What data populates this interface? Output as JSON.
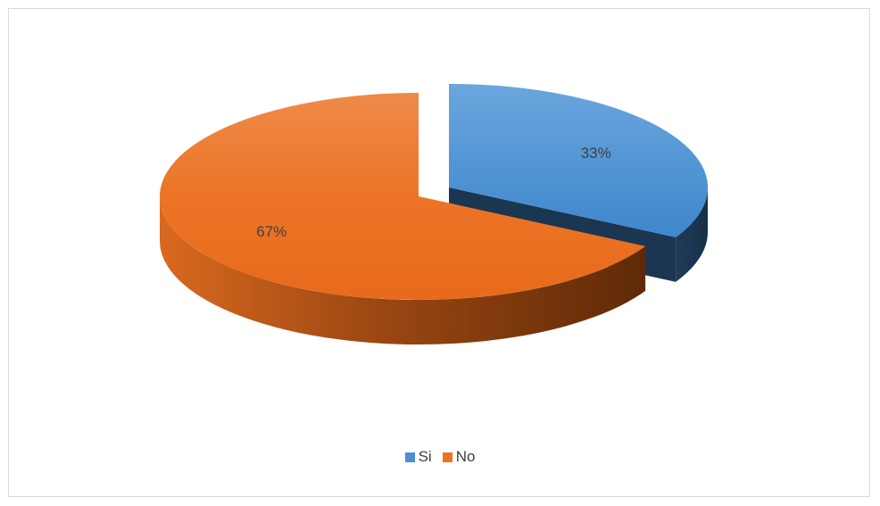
{
  "chart_data": {
    "type": "pie",
    "title": "",
    "categories": [
      "Si",
      "No"
    ],
    "values": [
      33,
      67
    ],
    "data_labels": [
      "33%",
      "67%"
    ],
    "colors": [
      "#4a8fd4",
      "#ec7424"
    ],
    "exploded": true,
    "style": "3d",
    "legend_position": "bottom"
  }
}
